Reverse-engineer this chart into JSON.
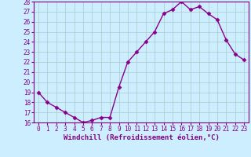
{
  "x": [
    0,
    1,
    2,
    3,
    4,
    5,
    6,
    7,
    8,
    9,
    10,
    11,
    12,
    13,
    14,
    15,
    16,
    17,
    18,
    19,
    20,
    21,
    22,
    23
  ],
  "y": [
    19.0,
    18.0,
    17.5,
    17.0,
    16.5,
    16.0,
    16.2,
    16.5,
    16.5,
    19.5,
    22.0,
    23.0,
    24.0,
    25.0,
    26.8,
    27.2,
    28.0,
    27.2,
    27.5,
    26.8,
    26.2,
    24.2,
    22.8,
    22.2
  ],
  "line_color": "#8b008b",
  "marker": "D",
  "marker_size": 2.5,
  "bg_color": "#cceeff",
  "grid_color": "#aacccc",
  "xlabel": "Windchill (Refroidissement éolien,°C)",
  "ylim": [
    16,
    28
  ],
  "yticks": [
    16,
    17,
    18,
    19,
    20,
    21,
    22,
    23,
    24,
    25,
    26,
    27,
    28
  ],
  "xticks": [
    0,
    1,
    2,
    3,
    4,
    5,
    6,
    7,
    8,
    9,
    10,
    11,
    12,
    13,
    14,
    15,
    16,
    17,
    18,
    19,
    20,
    21,
    22,
    23
  ],
  "tick_label_size": 5.5,
  "xlabel_size": 6.5,
  "line_width": 1.0,
  "axis_color": "#800080"
}
